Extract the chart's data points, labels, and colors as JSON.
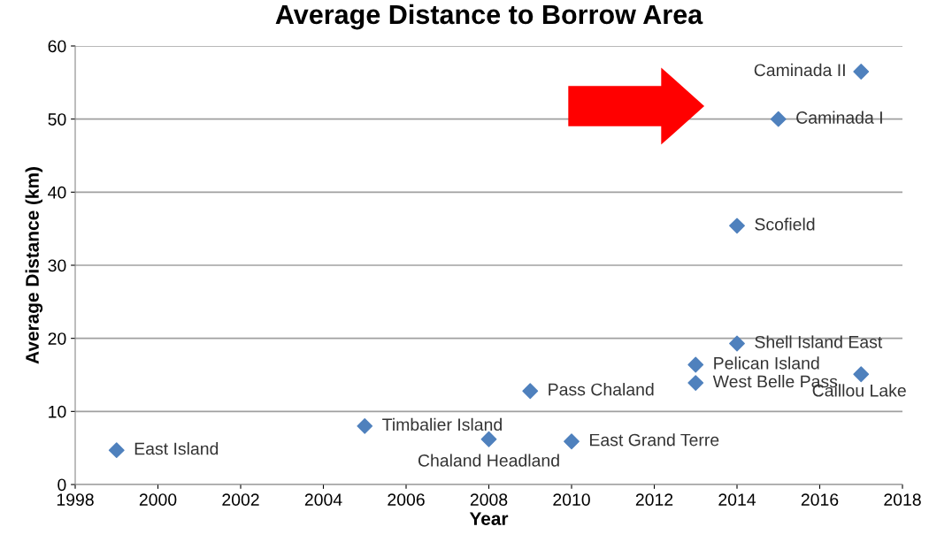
{
  "chart_data": {
    "type": "scatter",
    "title": "Average Distance to Borrow Area",
    "xlabel": "Year",
    "ylabel": "Average Distance (km)",
    "x": [
      1999,
      2005,
      2008,
      2009,
      2010,
      2013,
      2013,
      2014,
      2014,
      2015,
      2017,
      2017
    ],
    "values": [
      4.7,
      8.0,
      6.2,
      12.8,
      5.9,
      16.4,
      13.9,
      19.3,
      35.4,
      50.0,
      56.5,
      15.1
    ],
    "color": "#4f81bd",
    "marker": "diamond",
    "grid": "y",
    "xlim": [
      1998,
      2018
    ],
    "xticks": [
      1998,
      2000,
      2002,
      2004,
      2006,
      2008,
      2010,
      2012,
      2014,
      2016,
      2018
    ],
    "ylim": [
      0,
      60
    ],
    "yticks": [
      0,
      10,
      20,
      30,
      40,
      50,
      60
    ],
    "annotations": [
      {
        "text": "East Island",
        "x": 1999,
        "y": 4.7
      },
      {
        "text": "Timbalier Island",
        "x": 2005,
        "y": 8.0
      },
      {
        "text": "Chaland Headland",
        "x": 2008,
        "y": 6.2
      },
      {
        "text": "Pass Chaland",
        "x": 2009,
        "y": 12.8
      },
      {
        "text": "East Grand Terre",
        "x": 2010,
        "y": 5.9
      },
      {
        "text": "Pelican Island",
        "x": 2013,
        "y": 16.4
      },
      {
        "text": "West Belle Pass",
        "x": 2013,
        "y": 13.9
      },
      {
        "text": "Shell Island East",
        "x": 2014,
        "y": 19.3
      },
      {
        "text": "Scofield",
        "x": 2014,
        "y": 35.4
      },
      {
        "text": "Caminada I",
        "x": 2015,
        "y": 50.0
      },
      {
        "text": "Caminada II",
        "x": 2017,
        "y": 56.5
      },
      {
        "text": "Caillou Lake",
        "x": 2017,
        "y": 15.1
      }
    ]
  }
}
